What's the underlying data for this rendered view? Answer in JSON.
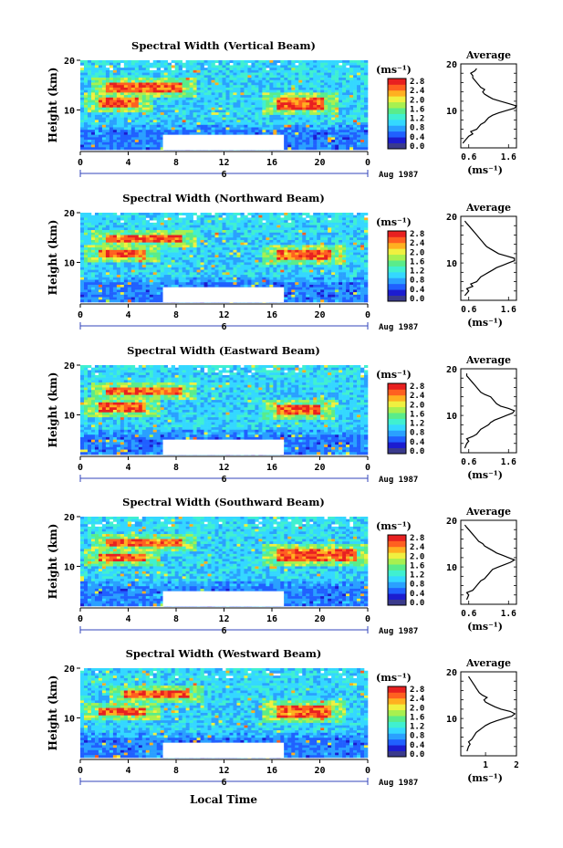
{
  "page": {
    "bottom_xlabel": "Local Time"
  },
  "color_palette": [
    "#3a3a8c",
    "#1c1cd0",
    "#2060ff",
    "#2aa0ff",
    "#34d8ff",
    "#40f0d0",
    "#5aec8a",
    "#a8f050",
    "#f0f040",
    "#ffb020",
    "#ff6020",
    "#e82020"
  ],
  "colorbar": {
    "unit": "(ms⁻¹)",
    "ticks": [
      "0.0",
      "0.4",
      "0.8",
      "1.2",
      "1.6",
      "2.0",
      "2.4",
      "2.8"
    ]
  },
  "chart_data": [
    {
      "type": "heatmap",
      "title": "Spectral Width (Vertical Beam)",
      "ylabel": "Height (km)",
      "xlim": [
        0,
        24
      ],
      "ylim": [
        2,
        20
      ],
      "xticks": [
        "0",
        "4",
        "8",
        "12",
        "16",
        "20",
        "0"
      ],
      "yticks": [
        "10",
        "20"
      ],
      "date_label": "Aug 1987",
      "day_markers": [
        "6"
      ],
      "value_range": [
        0.0,
        2.8
      ],
      "data_gap": {
        "x": [
          6.9,
          17.0
        ],
        "y": [
          2,
          5
        ]
      },
      "features": [
        {
          "x": [
            2.0,
            8.5
          ],
          "y": [
            13.5,
            15.5
          ],
          "level": "high"
        },
        {
          "x": [
            1.5,
            5.0
          ],
          "y": [
            10.5,
            12.5
          ],
          "level": "high"
        },
        {
          "x": [
            16.5,
            20.5
          ],
          "y": [
            10.0,
            12.5
          ],
          "level": "high"
        }
      ],
      "average_profile": {
        "title": "Average",
        "xlabel": "(ms⁻¹)",
        "xticks": [
          "0.6",
          "1.6"
        ],
        "yticks": [
          "10",
          "20"
        ],
        "xlim": [
          0.4,
          1.8
        ],
        "ylim": [
          2,
          20
        ],
        "x": [
          0.45,
          0.55,
          0.6,
          0.7,
          0.65,
          0.8,
          0.9,
          1.0,
          1.05,
          1.1,
          1.2,
          1.35,
          1.55,
          1.75,
          1.8,
          1.6,
          1.4,
          1.2,
          1.1,
          1.0,
          0.95,
          1.0,
          0.9,
          0.85,
          0.8,
          0.75,
          0.7,
          0.7,
          0.65,
          0.75,
          0.8
        ],
        "y": [
          3,
          4,
          4.5,
          5,
          5.5,
          6,
          7,
          7.5,
          8,
          8.5,
          9,
          9.5,
          10,
          10.5,
          11,
          11.5,
          12,
          12.5,
          13,
          13.5,
          14,
          14.5,
          15,
          15.5,
          16,
          16.5,
          17,
          17.5,
          18,
          18.5,
          19
        ]
      }
    },
    {
      "type": "heatmap",
      "title": "Spectral Width (Northward Beam)",
      "ylabel": "Height (km)",
      "xlim": [
        0,
        24
      ],
      "ylim": [
        2,
        20
      ],
      "xticks": [
        "0",
        "4",
        "8",
        "12",
        "16",
        "20",
        "0"
      ],
      "yticks": [
        "10",
        "20"
      ],
      "date_label": "Aug 1987",
      "day_markers": [
        "6"
      ],
      "value_range": [
        0.0,
        2.8
      ],
      "data_gap": {
        "x": [
          6.9,
          17.0
        ],
        "y": [
          2,
          5
        ]
      },
      "features": [
        {
          "x": [
            2.0,
            8.5
          ],
          "y": [
            14.0,
            15.5
          ],
          "level": "high"
        },
        {
          "x": [
            1.5,
            5.5
          ],
          "y": [
            11.0,
            12.5
          ],
          "level": "high"
        },
        {
          "x": [
            16.5,
            21.0
          ],
          "y": [
            10.5,
            12.5
          ],
          "level": "high"
        }
      ],
      "average_profile": {
        "title": "Average",
        "xlabel": "(ms⁻¹)",
        "xticks": [
          "0.6",
          "1.6"
        ],
        "yticks": [
          "10",
          "20"
        ],
        "xlim": [
          0.4,
          1.8
        ],
        "ylim": [
          2,
          20
        ],
        "x": [
          0.5,
          0.6,
          0.55,
          0.7,
          0.65,
          0.8,
          0.9,
          1.0,
          1.1,
          1.2,
          1.3,
          1.45,
          1.6,
          1.75,
          1.75,
          1.55,
          1.35,
          1.25,
          1.15,
          1.05,
          1.0,
          0.95,
          0.9,
          0.85,
          0.8,
          0.75,
          0.7,
          0.65,
          0.6,
          0.55,
          0.5
        ],
        "y": [
          3,
          4,
          4.5,
          5,
          5.5,
          6,
          7,
          7.5,
          8,
          8.5,
          9,
          9.5,
          10,
          10.5,
          11,
          11.5,
          12,
          12.5,
          13,
          13.5,
          14,
          14.5,
          15,
          15.5,
          16,
          16.5,
          17,
          17.5,
          18,
          18.5,
          19
        ]
      }
    },
    {
      "type": "heatmap",
      "title": "Spectral Width (Eastward Beam)",
      "ylabel": "Height (km)",
      "xlim": [
        0,
        24
      ],
      "ylim": [
        2,
        20
      ],
      "xticks": [
        "0",
        "4",
        "8",
        "12",
        "16",
        "20",
        "0"
      ],
      "yticks": [
        "10",
        "20"
      ],
      "date_label": "Aug 1987",
      "day_markers": [
        "6"
      ],
      "value_range": [
        0.0,
        2.8
      ],
      "data_gap": {
        "x": [
          6.9,
          17.0
        ],
        "y": [
          2,
          5
        ]
      },
      "features": [
        {
          "x": [
            2.0,
            8.5
          ],
          "y": [
            14.0,
            15.5
          ],
          "level": "high"
        },
        {
          "x": [
            1.5,
            5.5
          ],
          "y": [
            10.5,
            12.5
          ],
          "level": "high"
        },
        {
          "x": [
            16.5,
            20.0
          ],
          "y": [
            10.0,
            12.0
          ],
          "level": "high"
        }
      ],
      "average_profile": {
        "title": "Average",
        "xlabel": "(ms⁻¹)",
        "xticks": [
          "0.6",
          "1.6"
        ],
        "yticks": [
          "10",
          "20"
        ],
        "xlim": [
          0.4,
          1.8
        ],
        "ylim": [
          2,
          20
        ],
        "x": [
          0.5,
          0.55,
          0.6,
          0.55,
          0.7,
          0.8,
          0.9,
          1.0,
          1.1,
          1.15,
          1.25,
          1.4,
          1.55,
          1.7,
          1.75,
          1.6,
          1.4,
          1.3,
          1.25,
          1.2,
          1.15,
          1.0,
          0.9,
          0.85,
          0.8,
          0.75,
          0.7,
          0.65,
          0.6,
          0.55,
          0.55
        ],
        "y": [
          3,
          4,
          4.5,
          5,
          5.5,
          6,
          7,
          7.5,
          8,
          8.5,
          9,
          9.5,
          10,
          10.5,
          11,
          11.5,
          12,
          12.5,
          13,
          13.5,
          14,
          14.5,
          15,
          15.5,
          16,
          16.5,
          17,
          17.5,
          18,
          18.5,
          19
        ]
      }
    },
    {
      "type": "heatmap",
      "title": "Spectral Width (Southward Beam)",
      "ylabel": "Height (km)",
      "xlim": [
        0,
        24
      ],
      "ylim": [
        2,
        20
      ],
      "xticks": [
        "0",
        "4",
        "8",
        "12",
        "16",
        "20",
        "0"
      ],
      "yticks": [
        "10",
        "20"
      ],
      "date_label": "Aug 1987",
      "day_markers": [
        "6"
      ],
      "value_range": [
        0.0,
        2.8
      ],
      "data_gap": {
        "x": [
          6.9,
          17.0
        ],
        "y": [
          2,
          5
        ]
      },
      "features": [
        {
          "x": [
            2.0,
            8.5
          ],
          "y": [
            14.0,
            15.5
          ],
          "level": "high"
        },
        {
          "x": [
            1.5,
            5.5
          ],
          "y": [
            11.0,
            12.5
          ],
          "level": "high"
        },
        {
          "x": [
            16.5,
            23.0
          ],
          "y": [
            11.0,
            13.5
          ],
          "level": "high"
        }
      ],
      "average_profile": {
        "title": "Average",
        "xlabel": "(ms⁻¹)",
        "xticks": [
          "0.6",
          "1.6"
        ],
        "yticks": [
          "10",
          "20"
        ],
        "xlim": [
          0.4,
          1.8
        ],
        "ylim": [
          2,
          20
        ],
        "x": [
          0.55,
          0.6,
          0.55,
          0.7,
          0.75,
          0.8,
          0.9,
          1.0,
          1.05,
          1.1,
          1.15,
          1.2,
          1.35,
          1.5,
          1.65,
          1.75,
          1.6,
          1.45,
          1.3,
          1.2,
          1.1,
          1.0,
          0.95,
          0.85,
          0.8,
          0.75,
          0.7,
          0.65,
          0.6,
          0.55,
          0.5
        ],
        "y": [
          3,
          4,
          4.5,
          5,
          5.5,
          6,
          7,
          7.5,
          8,
          8.5,
          9,
          9.5,
          10,
          10.5,
          11,
          11.5,
          12,
          12.5,
          13,
          13.5,
          14,
          14.5,
          15,
          15.5,
          16,
          16.5,
          17,
          17.5,
          18,
          18.5,
          19
        ]
      }
    },
    {
      "type": "heatmap",
      "title": "Spectral Width (Westward Beam)",
      "ylabel": "Height (km)",
      "xlim": [
        0,
        24
      ],
      "ylim": [
        2,
        20
      ],
      "xticks": [
        "0",
        "4",
        "8",
        "12",
        "16",
        "20",
        "0"
      ],
      "yticks": [
        "10",
        "20"
      ],
      "date_label": "Aug 1987",
      "day_markers": [
        "6"
      ],
      "value_range": [
        0.0,
        2.8
      ],
      "data_gap": {
        "x": [
          6.9,
          17.0
        ],
        "y": [
          2,
          5
        ]
      },
      "features": [
        {
          "x": [
            3.5,
            9.0
          ],
          "y": [
            14.0,
            15.5
          ],
          "level": "high"
        },
        {
          "x": [
            1.5,
            5.5
          ],
          "y": [
            10.5,
            12.0
          ],
          "level": "high"
        },
        {
          "x": [
            16.5,
            21.0
          ],
          "y": [
            10.0,
            12.5
          ],
          "level": "high"
        }
      ],
      "average_profile": {
        "title": "Average",
        "xlabel": "(ms⁻¹)",
        "xticks": [
          "1",
          "2"
        ],
        "yticks": [
          "10",
          "20"
        ],
        "xlim": [
          0.2,
          2.0
        ],
        "ylim": [
          2,
          20
        ],
        "x": [
          0.4,
          0.45,
          0.5,
          0.45,
          0.55,
          0.6,
          0.7,
          0.8,
          0.9,
          1.0,
          1.15,
          1.35,
          1.6,
          1.85,
          1.95,
          1.8,
          1.5,
          1.3,
          1.15,
          1.0,
          0.95,
          1.05,
          0.9,
          0.8,
          0.75,
          0.7,
          0.65,
          0.6,
          0.55,
          0.5,
          0.45
        ],
        "y": [
          3,
          4,
          4.5,
          5,
          5.5,
          6,
          7,
          7.5,
          8,
          8.5,
          9,
          9.5,
          10,
          10.5,
          11,
          11.5,
          12,
          12.5,
          13,
          13.5,
          14,
          14.5,
          15,
          15.5,
          16,
          16.5,
          17,
          17.5,
          18,
          18.5,
          19
        ]
      }
    }
  ]
}
